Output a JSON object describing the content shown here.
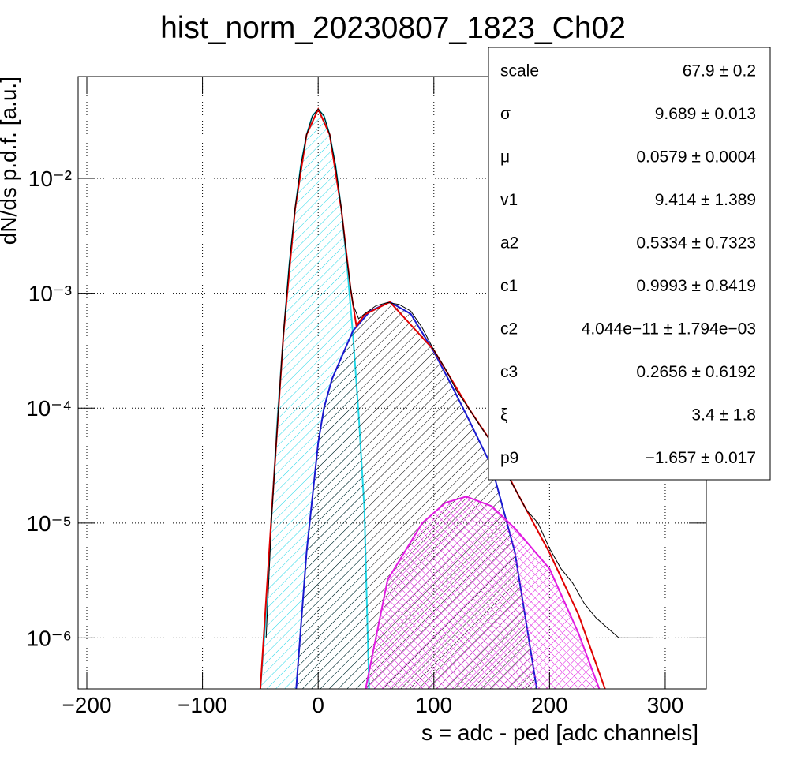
{
  "chart_data": {
    "type": "line",
    "title": "hist_norm_20230807_1823_Ch02",
    "x_label": "s = adc - ped [adc channels]",
    "y_label": "dN/ds p.d.f. [a.u.]",
    "xlim": [
      -207.5,
      335.5
    ],
    "ylim": [
      3.6e-07,
      0.077
    ],
    "log_y": true,
    "grid": true,
    "xticks": [
      {
        "value": -200,
        "label": "−200"
      },
      {
        "value": -100,
        "label": "−100"
      },
      0,
      100,
      200,
      300
    ],
    "yticks": [
      {
        "value": 1e-06,
        "label": "10⁻⁶"
      },
      {
        "value": 1e-05,
        "label": "10⁻⁵"
      },
      {
        "value": 0.0001,
        "label": "10⁻⁴"
      },
      {
        "value": 0.001,
        "label": "10⁻³"
      },
      {
        "value": 0.01,
        "label": "10⁻²"
      }
    ],
    "series": [
      {
        "color": "#22d8e8",
        "fill_style": "hatch",
        "x": [
          -50,
          -45,
          -40,
          -35,
          -30,
          -25,
          -20,
          -15,
          -10,
          -5,
          0,
          5,
          10,
          15,
          20,
          25,
          30,
          35,
          40,
          44
        ],
        "values": [
          3.6e-07,
          1.6e-06,
          1.3e-05,
          8.8e-05,
          0.00044,
          0.00175,
          0.0054,
          0.013,
          0.024,
          0.035,
          0.04,
          0.035,
          0.024,
          0.013,
          0.0054,
          0.00175,
          0.00044,
          8.8e-05,
          1.3e-05,
          3.6e-07
        ]
      },
      {
        "color": "#1a1ad0",
        "fill_style": "hatch",
        "x": [
          -19,
          -10,
          0,
          5,
          12,
          30,
          45,
          62,
          80,
          100,
          115,
          130,
          150,
          170,
          189
        ],
        "values": [
          3.6e-07,
          5.6e-06,
          5e-05,
          0.0001,
          0.00018,
          0.00047,
          0.0007,
          0.00084,
          0.00066,
          0.00031,
          0.00016,
          8e-05,
          3.1e-05,
          5.6e-06,
          3.6e-07
        ]
      },
      {
        "color": "#e01be0",
        "fill_style": "crosshatch",
        "x": [
          41,
          60,
          90,
          110,
          128,
          150,
          170,
          200,
          225,
          243
        ],
        "values": [
          3.6e-07,
          3.2e-06,
          1e-05,
          1.5e-05,
          1.7e-05,
          1.4e-05,
          9e-06,
          4e-06,
          1.1e-06,
          3.6e-07
        ]
      },
      {
        "color": "#e00000",
        "x": [
          -50,
          -40,
          -30,
          -20,
          -10,
          0,
          10,
          20,
          28,
          33,
          40,
          62,
          100,
          130,
          150,
          170,
          200,
          225,
          248
        ],
        "values": [
          3.6e-07,
          1.3e-05,
          0.00044,
          0.0054,
          0.024,
          0.04,
          0.024,
          0.0054,
          0.0011,
          0.00052,
          0.00065,
          0.00084,
          0.00032,
          0.0001,
          5e-05,
          2e-05,
          5.5e-06,
          1.6e-06,
          3.6e-07
        ]
      },
      {
        "color": "#000000",
        "x": [
          -45,
          -40,
          -35,
          -30,
          -25,
          -20,
          -15,
          -10,
          -5,
          0,
          5,
          10,
          15,
          20,
          25,
          30,
          35,
          40,
          50,
          60,
          70,
          80,
          90,
          100,
          110,
          120,
          130,
          140,
          150,
          160,
          170,
          180,
          190,
          200,
          210,
          220,
          230,
          240,
          260,
          290
        ],
        "values": [
          1e-06,
          1.2e-05,
          8e-05,
          0.00045,
          0.0018,
          0.0055,
          0.013,
          0.024,
          0.035,
          0.04,
          0.035,
          0.024,
          0.013,
          0.0055,
          0.0019,
          0.0008,
          0.0006,
          0.00066,
          0.00078,
          0.00083,
          0.0008,
          0.0007,
          0.0005,
          0.00032,
          0.00022,
          0.00014,
          0.0001,
          7e-05,
          5e-05,
          3e-05,
          2e-05,
          1.3e-05,
          1e-05,
          6e-06,
          4e-06,
          3e-06,
          2e-06,
          1.5e-06,
          1e-06,
          1e-06
        ]
      }
    ],
    "stats": [
      {
        "name": "scale",
        "value": "67.9 ± 0.2"
      },
      {
        "name": "σ",
        "value": "9.689 ± 0.013"
      },
      {
        "name": "μ",
        "value": "0.0579 ± 0.0004"
      },
      {
        "name": "v1",
        "value": "9.414 ± 1.389"
      },
      {
        "name": "a2",
        "value": "0.5334 ± 0.7323"
      },
      {
        "name": "c1",
        "value": "0.9993 ± 0.8419"
      },
      {
        "name": "c2",
        "value": "4.044e−11 ± 1.794e−03"
      },
      {
        "name": "c3",
        "value": "0.2656 ± 0.6192"
      },
      {
        "name": "ξ",
        "value": "3.4 ± 1.8"
      },
      {
        "name": "p9",
        "value": "−1.657 ± 0.017"
      }
    ]
  }
}
